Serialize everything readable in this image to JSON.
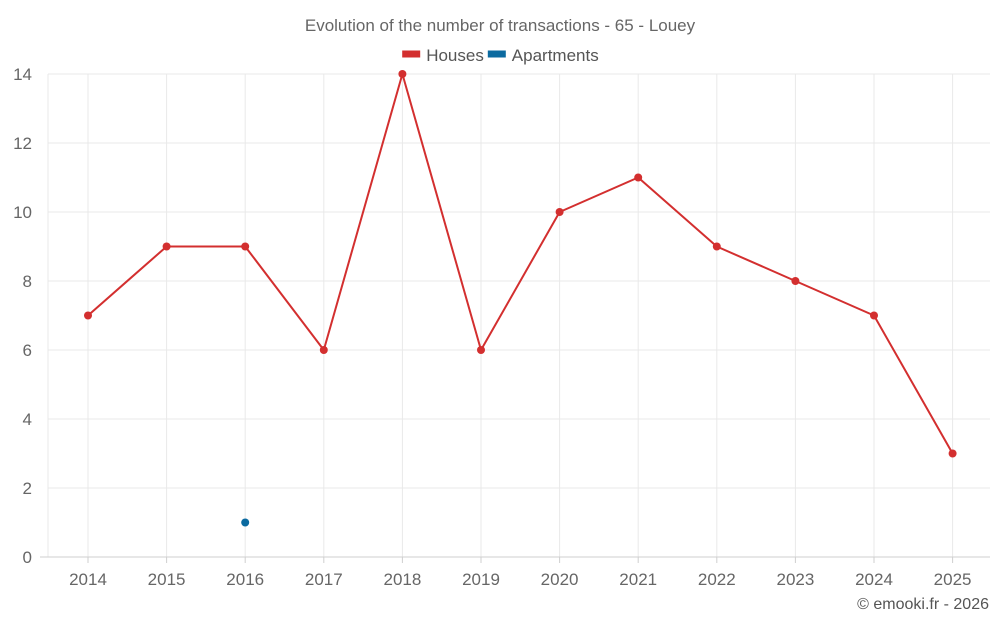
{
  "chart_data": {
    "type": "line",
    "title": "Evolution of the number of transactions - 65 - Louey",
    "categories": [
      "2014",
      "2015",
      "2016",
      "2017",
      "2018",
      "2019",
      "2020",
      "2021",
      "2022",
      "2023",
      "2024",
      "2025"
    ],
    "series": [
      {
        "name": "Houses",
        "color": "#d32f2f",
        "values": [
          7,
          9,
          9,
          6,
          14,
          6,
          10,
          11,
          9,
          8,
          7,
          3
        ]
      },
      {
        "name": "Apartments",
        "color": "#0b6aa0",
        "values": [
          null,
          null,
          1,
          null,
          null,
          null,
          null,
          null,
          null,
          null,
          null,
          null
        ]
      }
    ],
    "yticks": [
      0,
      2,
      4,
      6,
      8,
      10,
      12,
      14
    ],
    "ylim": [
      0,
      14
    ],
    "xlabel": "",
    "ylabel": "",
    "grid": true,
    "legend": "top-center"
  },
  "credit": "© emooki.fr - 2026"
}
